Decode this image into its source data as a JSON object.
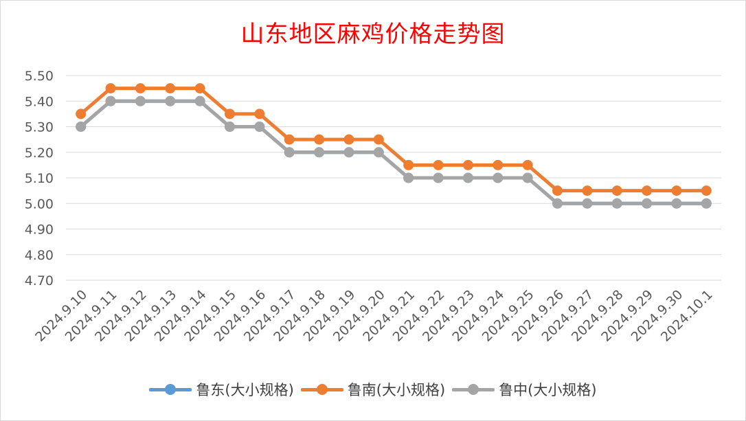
{
  "chart_data": {
    "type": "line",
    "title": "山东地区麻鸡价格走势图",
    "xlabel": "",
    "ylabel": "",
    "categories": [
      "2024.9.10",
      "2024.9.11",
      "2024.9.12",
      "2024.9.13",
      "2024.9.14",
      "2024.9.15",
      "2024.9.16",
      "2024.9.17",
      "2024.9.18",
      "2024.9.19",
      "2024.9.20",
      "2024.9.21",
      "2024.9.22",
      "2024.9.23",
      "2024.9.24",
      "2024.9.25",
      "2024.9.26",
      "2024.9.27",
      "2024.9.28",
      "2024.9.29",
      "2024.9.30",
      "2024.10.1"
    ],
    "ylim": [
      4.7,
      5.5
    ],
    "yticks": [
      "4.70",
      "4.80",
      "4.90",
      "5.00",
      "5.10",
      "5.20",
      "5.30",
      "5.40",
      "5.50"
    ],
    "grid": true,
    "legend_position": "bottom",
    "series": [
      {
        "name": "鲁东(大小规格)",
        "color": "#5b9bd5",
        "values": [
          5.3,
          5.4,
          5.4,
          5.4,
          5.4,
          5.3,
          5.3,
          5.2,
          5.2,
          5.2,
          5.2,
          5.1,
          5.1,
          5.1,
          5.1,
          5.1,
          5.0,
          5.0,
          5.0,
          5.0,
          5.0,
          5.0
        ]
      },
      {
        "name": "鲁南(大小规格)",
        "color": "#ed7d31",
        "values": [
          5.35,
          5.45,
          5.45,
          5.45,
          5.45,
          5.35,
          5.35,
          5.25,
          5.25,
          5.25,
          5.25,
          5.15,
          5.15,
          5.15,
          5.15,
          5.15,
          5.05,
          5.05,
          5.05,
          5.05,
          5.05,
          5.05
        ]
      },
      {
        "name": "鲁中(大小规格)",
        "color": "#a5a5a5",
        "values": [
          5.3,
          5.4,
          5.4,
          5.4,
          5.4,
          5.3,
          5.3,
          5.2,
          5.2,
          5.2,
          5.2,
          5.1,
          5.1,
          5.1,
          5.1,
          5.1,
          5.0,
          5.0,
          5.0,
          5.0,
          5.0,
          5.0
        ]
      }
    ]
  }
}
